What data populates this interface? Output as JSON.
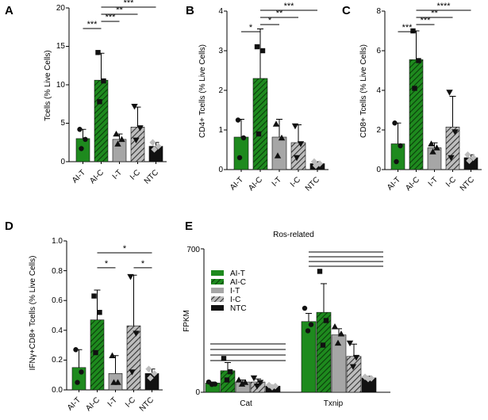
{
  "figure": {
    "patterns": {
      "hatch_green": "AI-C",
      "hatch_gray": "I-C"
    },
    "colors": {
      "ai_t": "#1e8a1e",
      "ai_c_bg": "#1e8a1e",
      "i_t": "#a6a6a6",
      "i_c_bg": "#8c8c8c",
      "ntc": "#111111"
    }
  },
  "chart_data": [
    {
      "type": "bar",
      "panel": "A",
      "categories": [
        "AI-T",
        "AI-C",
        "I-T",
        "I-C",
        "NTC"
      ],
      "values": [
        3.0,
        10.6,
        2.9,
        4.5,
        2.0
      ],
      "errors": [
        1.2,
        3.5,
        0.7,
        2.6,
        0.5
      ],
      "points": [
        [
          4.2,
          2.9,
          1.7
        ],
        [
          14.2,
          10.5,
          7.8
        ],
        [
          3.6,
          2.9,
          2.3
        ],
        [
          7.2,
          4.4,
          2.8
        ],
        [
          2.5,
          2.0,
          1.6
        ]
      ],
      "ylabel": "Tcells (% Live Cells)",
      "ylim": [
        0,
        20
      ],
      "yticks": [
        0,
        5,
        10,
        15,
        20
      ],
      "significance": [
        {
          "from": "AI-T",
          "to": "AI-C",
          "label": "***"
        },
        {
          "from": "AI-C",
          "to": "I-T",
          "label": "***"
        },
        {
          "from": "AI-C",
          "to": "I-C",
          "label": "**"
        },
        {
          "from": "AI-C",
          "to": "NTC",
          "label": "***"
        }
      ]
    },
    {
      "type": "bar",
      "panel": "B",
      "categories": [
        "AI-T",
        "AI-C",
        "I-T",
        "I-C",
        "NTC"
      ],
      "values": [
        0.82,
        2.3,
        0.82,
        0.68,
        0.15
      ],
      "errors": [
        0.45,
        1.25,
        0.45,
        0.45,
        0.05
      ],
      "points": [
        [
          1.25,
          0.8,
          0.3
        ],
        [
          3.1,
          3.0,
          0.9
        ],
        [
          1.15,
          0.8,
          0.35
        ],
        [
          1.1,
          0.65,
          0.3
        ],
        [
          0.2,
          0.15,
          0.1
        ]
      ],
      "ylabel": "CD4+ Tcells (% Live Cells)",
      "ylim": [
        0,
        4
      ],
      "yticks": [
        0,
        1,
        2,
        3,
        4
      ],
      "significance": [
        {
          "from": "AI-T",
          "to": "AI-C",
          "label": "*"
        },
        {
          "from": "AI-C",
          "to": "I-T",
          "label": "*"
        },
        {
          "from": "AI-C",
          "to": "I-C",
          "label": "**"
        },
        {
          "from": "AI-C",
          "to": "NTC",
          "label": "***"
        }
      ]
    },
    {
      "type": "bar",
      "panel": "C",
      "categories": [
        "AI-T",
        "AI-C",
        "I-T",
        "I-C",
        "NTC"
      ],
      "values": [
        1.3,
        5.55,
        1.1,
        2.15,
        0.6
      ],
      "errors": [
        1.05,
        1.45,
        0.25,
        1.55,
        0.15
      ],
      "points": [
        [
          2.35,
          1.2,
          0.4
        ],
        [
          7.0,
          5.5,
          4.1
        ],
        [
          1.3,
          1.1,
          0.9
        ],
        [
          3.9,
          1.9,
          0.6
        ],
        [
          0.75,
          0.6,
          0.45
        ]
      ],
      "ylabel": "CD8+ Tcells (% Live Cells)",
      "ylim": [
        0,
        8
      ],
      "yticks": [
        0,
        2,
        4,
        6,
        8
      ],
      "significance": [
        {
          "from": "AI-T",
          "to": "AI-C",
          "label": "***"
        },
        {
          "from": "AI-C",
          "to": "I-T",
          "label": "***"
        },
        {
          "from": "AI-C",
          "to": "I-C",
          "label": "**"
        },
        {
          "from": "AI-C",
          "to": "NTC",
          "label": "****"
        }
      ]
    },
    {
      "type": "bar",
      "panel": "D",
      "categories": [
        "AI-T",
        "AI-C",
        "I-T",
        "I-C",
        "NTC"
      ],
      "values": [
        0.15,
        0.47,
        0.11,
        0.43,
        0.11
      ],
      "errors": [
        0.12,
        0.2,
        0.12,
        0.34,
        0.03
      ],
      "points": [
        [
          0.27,
          0.12,
          0.05
        ],
        [
          0.63,
          0.52,
          0.25
        ],
        [
          0.23,
          0.05,
          0.05
        ],
        [
          0.76,
          0.38,
          0.12
        ],
        [
          0.14,
          0.11,
          0.08
        ]
      ],
      "ylabel": "IFNγ+CD8+ Tcells (% Live Cells)",
      "ylim": [
        0,
        1.0
      ],
      "yticks": [
        "0.0",
        "0.2",
        "0.4",
        "0.6",
        "0.8",
        "1.0"
      ],
      "significance": [
        {
          "from": "AI-C",
          "to": "I-T",
          "label": "*"
        },
        {
          "from": "AI-C",
          "to": "NTC",
          "label": "*"
        },
        {
          "from": "I-C",
          "to": "NTC",
          "label": "*"
        }
      ]
    },
    {
      "type": "bar",
      "panel": "E",
      "title": "Ros-related",
      "ylabel": "FPKM",
      "ylim": [
        0,
        700
      ],
      "yticks": [
        0,
        700
      ],
      "categories": [
        "Cat",
        "Txnip"
      ],
      "series": [
        {
          "name": "AI-T",
          "values": [
            45,
            345
          ],
          "errors": [
            5,
            40
          ],
          "points": [
            [
              50,
              40,
              38
            ],
            [
              410,
              330,
              300
            ]
          ]
        },
        {
          "name": "AI-C",
          "values": [
            105,
            390
          ],
          "errors": [
            40,
            140
          ],
          "points": [
            [
              165,
              100,
              60
            ],
            [
              590,
              350,
              230
            ]
          ]
        },
        {
          "name": "I-T",
          "values": [
            50,
            280
          ],
          "errors": [
            10,
            30
          ],
          "points": [
            [
              60,
              48,
              40
            ],
            [
              320,
              285,
              240
            ]
          ]
        },
        {
          "name": "I-C",
          "values": [
            50,
            175
          ],
          "errors": [
            15,
            60
          ],
          "points": [
            [
              70,
              48,
              30
            ],
            [
              240,
              170,
              125
            ]
          ]
        },
        {
          "name": "NTC",
          "values": [
            30,
            70
          ],
          "errors": [
            5,
            8
          ],
          "points": [
            [
              35,
              30,
              25
            ],
            [
              75,
              68,
              65
            ]
          ]
        }
      ],
      "legend": [
        "AI-T",
        "AI-C",
        "I-T",
        "I-C",
        "NTC"
      ]
    }
  ]
}
